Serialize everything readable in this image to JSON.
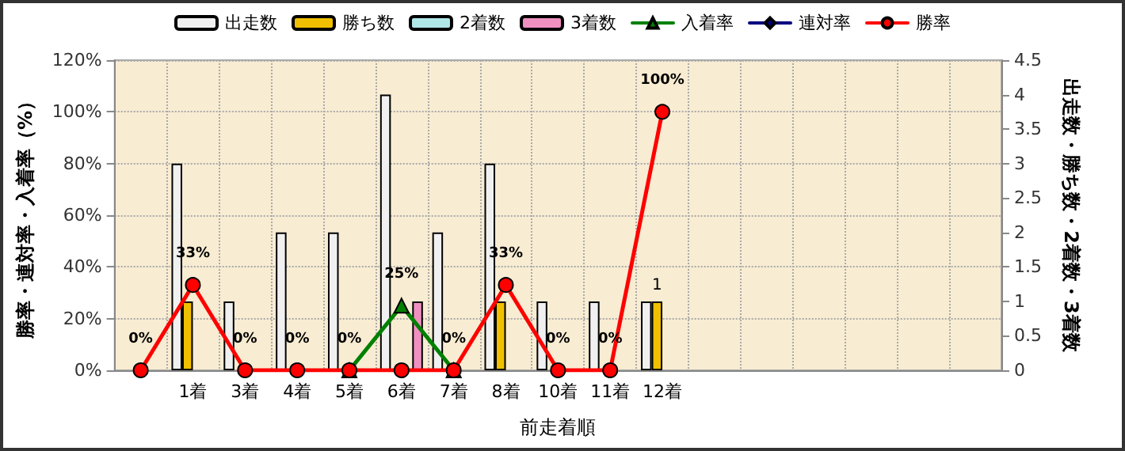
{
  "chart_data": {
    "type": "bar",
    "xlabel": "前走着順",
    "ylabel": "勝率・連対率・入着率（%）",
    "y2label": "出走数・勝ち数・2着数・3着数",
    "categories": [
      null,
      "1着",
      "3着",
      "4着",
      "5着",
      "6着",
      "7着",
      "8着",
      "10着",
      "11着",
      "12着",
      null,
      null,
      null,
      null,
      null,
      null
    ],
    "series": [
      {
        "name": "出走数",
        "color": "#f0f0f0",
        "axis": "y2",
        "values": [
          null,
          3,
          1,
          2,
          2,
          4,
          2,
          3,
          1,
          1,
          1,
          null,
          null,
          null,
          null,
          null,
          null
        ]
      },
      {
        "name": "勝ち数",
        "color": "#f0c000",
        "axis": "y2",
        "values": [
          null,
          1,
          null,
          null,
          null,
          null,
          null,
          1,
          null,
          null,
          1,
          null,
          null,
          null,
          null,
          null,
          null
        ],
        "value_labels": [
          null,
          null,
          null,
          null,
          null,
          null,
          null,
          null,
          null,
          null,
          "1",
          null,
          null,
          null,
          null,
          null,
          null
        ]
      },
      {
        "name": "2着数",
        "color": "#b0e8e8",
        "axis": "y2",
        "values": [
          null,
          null,
          null,
          null,
          null,
          null,
          null,
          null,
          null,
          null,
          null,
          null,
          null,
          null,
          null,
          null,
          null
        ]
      },
      {
        "name": "3着数",
        "color": "#f090c0",
        "axis": "y2",
        "values": [
          null,
          null,
          null,
          null,
          null,
          1,
          null,
          null,
          null,
          null,
          null,
          null,
          null,
          null,
          null,
          null,
          null
        ]
      },
      {
        "name": "入着率",
        "type": "line",
        "color": "#008000",
        "marker": "triangle",
        "values": [
          null,
          null,
          null,
          null,
          0,
          25,
          0,
          null,
          null,
          null,
          null,
          null,
          null,
          null,
          null,
          null,
          null
        ],
        "value_labels": [
          null,
          null,
          null,
          null,
          null,
          "25%",
          null,
          null,
          null,
          null,
          null,
          null,
          null,
          null,
          null,
          null,
          null
        ]
      },
      {
        "name": "連対率",
        "type": "line",
        "color": "#000080",
        "marker": "diamond",
        "values": [
          null,
          null,
          null,
          null,
          null,
          null,
          null,
          null,
          null,
          null,
          null,
          null,
          null,
          null,
          null,
          null,
          null
        ]
      },
      {
        "name": "勝率",
        "type": "line",
        "color": "#ff0000",
        "marker": "circle",
        "values": [
          0,
          33,
          0,
          0,
          0,
          0,
          0,
          33,
          0,
          0,
          100,
          null,
          null,
          null,
          null,
          null,
          null
        ],
        "value_labels": [
          "0%",
          "33%",
          "0%",
          "0%",
          "0%",
          null,
          "0%",
          "33%",
          "0%",
          "0%",
          "100%",
          null,
          null,
          null,
          null,
          null,
          null
        ]
      }
    ],
    "ylim": [
      0,
      120
    ],
    "yticks": [
      {
        "value": 0,
        "label": "0%"
      },
      {
        "value": 20,
        "label": "20%"
      },
      {
        "value": 40,
        "label": "40%"
      },
      {
        "value": 60,
        "label": "60%"
      },
      {
        "value": 80,
        "label": "80%"
      },
      {
        "value": 100,
        "label": "100%"
      },
      {
        "value": 120,
        "label": "120%"
      }
    ],
    "y2lim": [
      0,
      4.5
    ],
    "y2ticks": [
      0,
      0.5,
      1,
      1.5,
      2,
      2.5,
      3,
      3.5,
      4,
      4.5
    ],
    "grid": true,
    "legend": "top",
    "line_style": "solid"
  }
}
